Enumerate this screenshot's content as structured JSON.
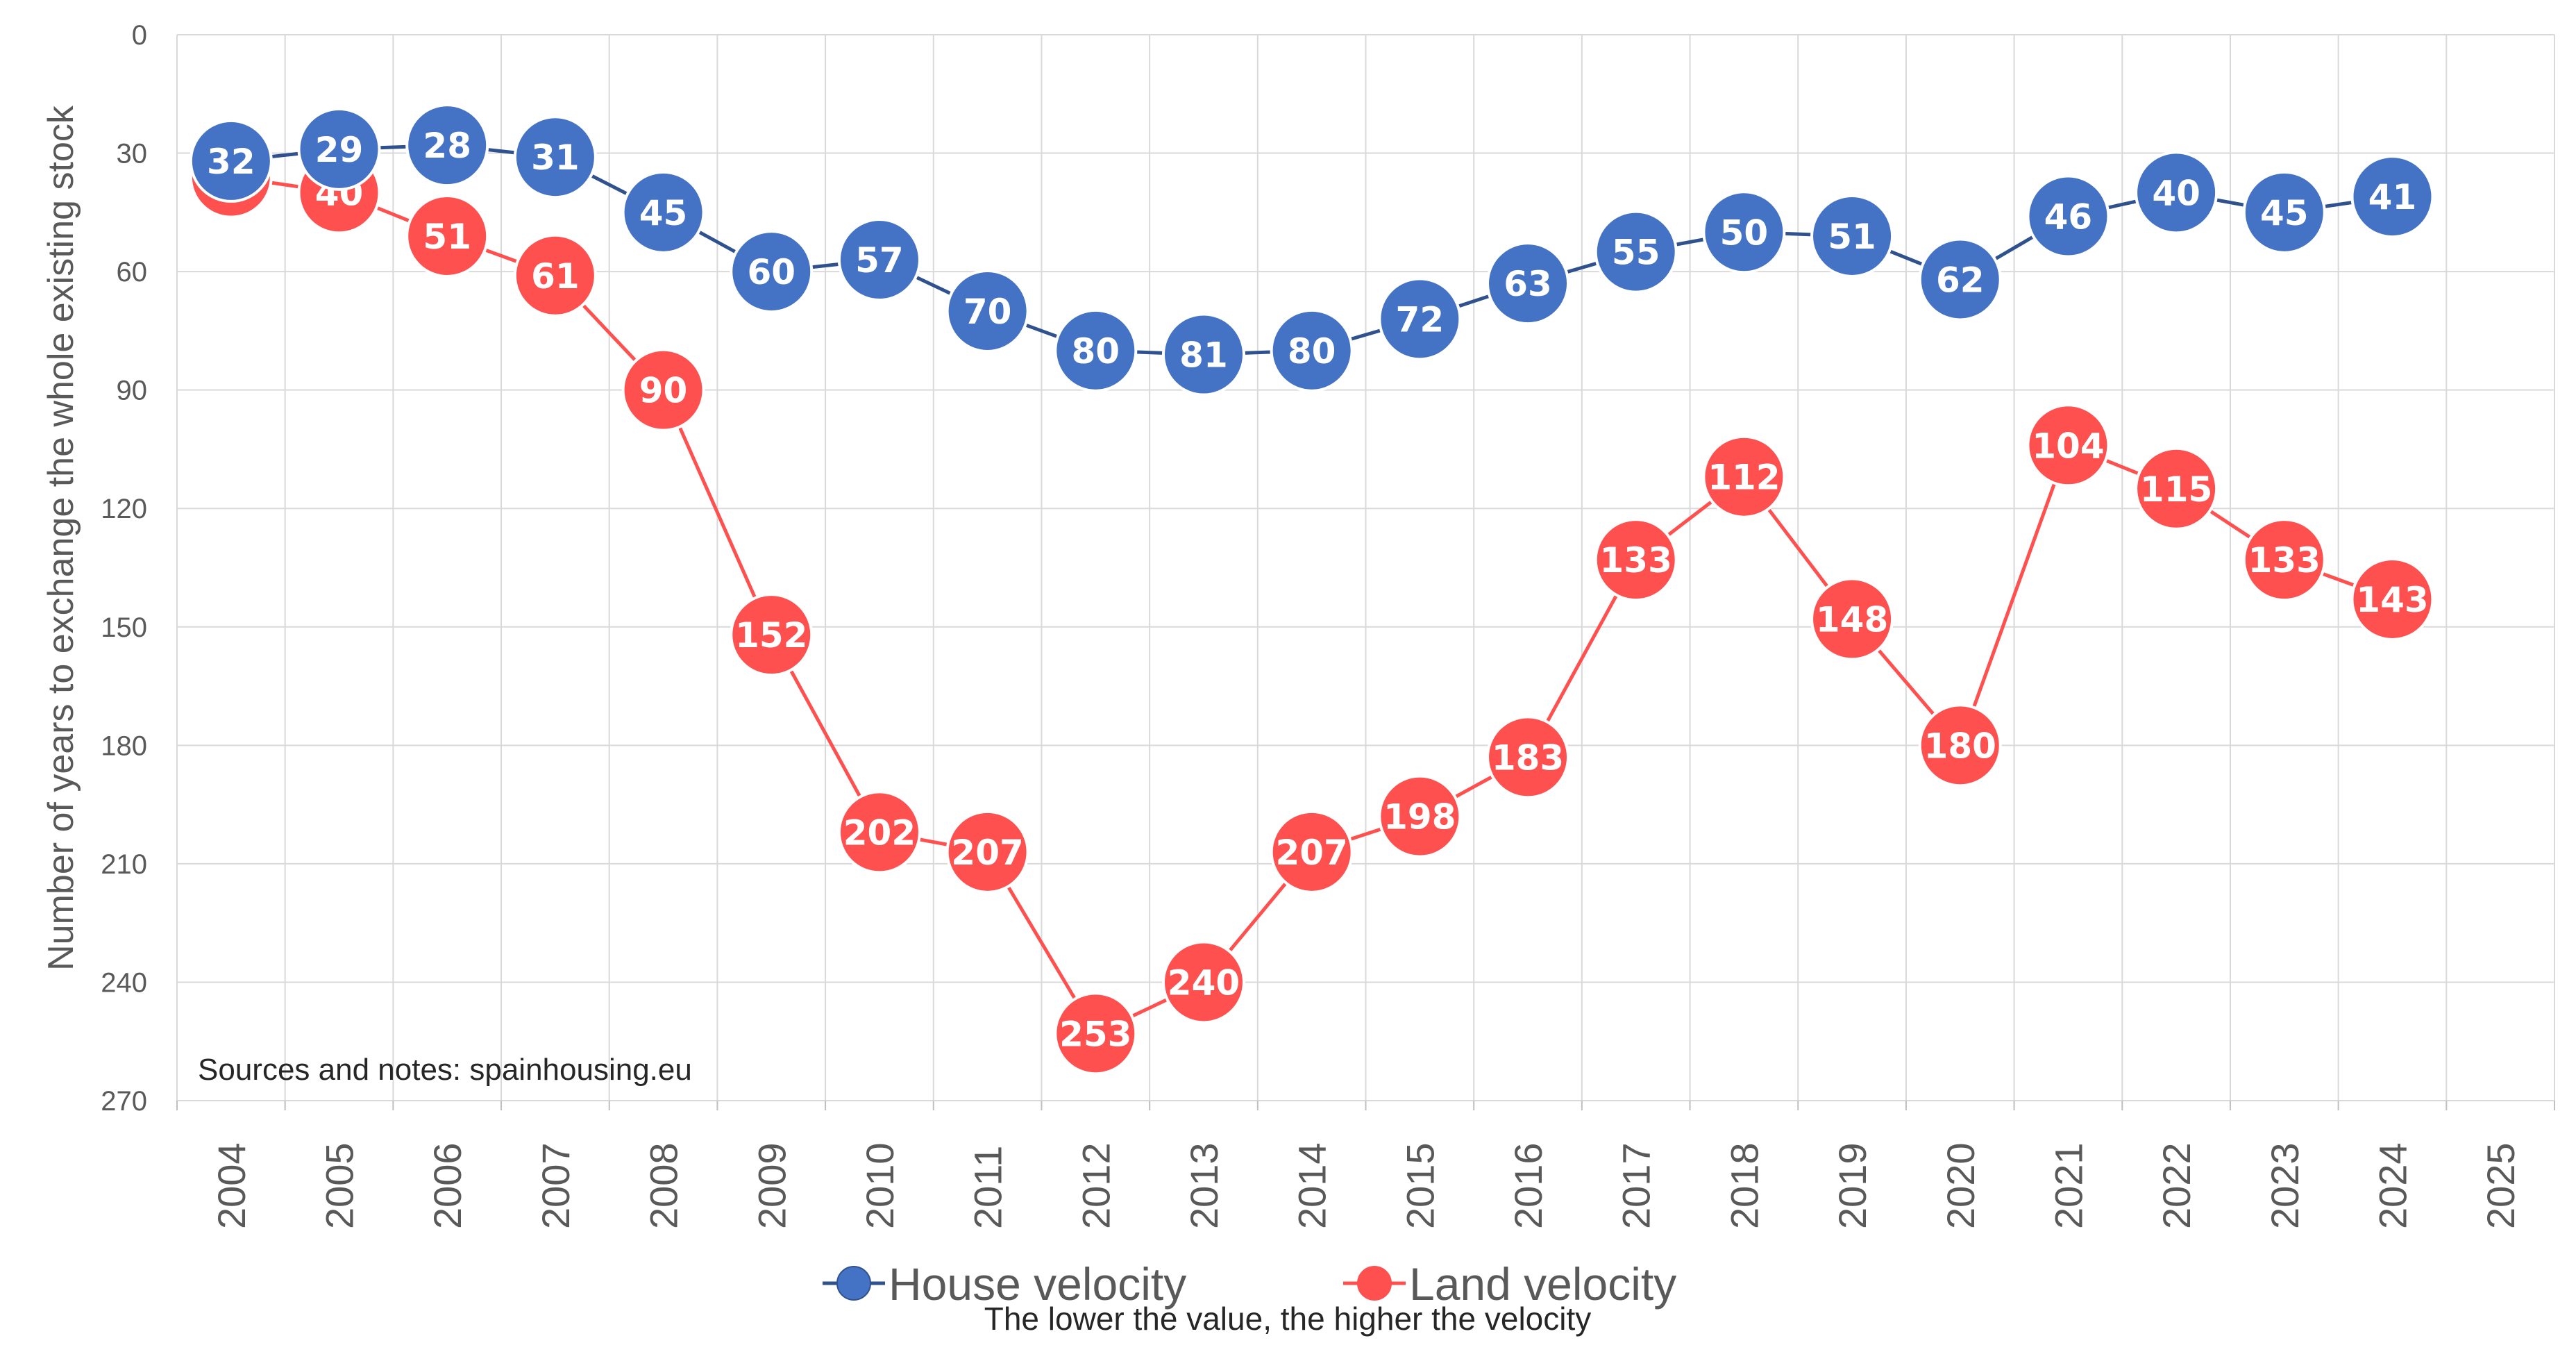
{
  "chart_data": {
    "type": "line",
    "ylabel": "Number of years to exchange the whole existing stock",
    "xlabel": "",
    "y_axis_reversed": true,
    "ylim": [
      0,
      270
    ],
    "yticks": [
      0,
      30,
      60,
      90,
      120,
      150,
      180,
      210,
      240,
      270
    ],
    "categories": [
      "2004",
      "2005",
      "2006",
      "2007",
      "2008",
      "2009",
      "2010",
      "2011",
      "2012",
      "2013",
      "2014",
      "2015",
      "2016",
      "2017",
      "2018",
      "2019",
      "2020",
      "2021",
      "2022",
      "2023",
      "2024",
      "2025"
    ],
    "series": [
      {
        "name": "House velocity",
        "color": "#4472C4",
        "values": [
          32,
          29,
          28,
          31,
          45,
          60,
          57,
          70,
          80,
          81,
          80,
          72,
          63,
          55,
          50,
          51,
          62,
          46,
          40,
          45,
          41,
          null
        ]
      },
      {
        "name": "Land velocity",
        "color": "#FF5050",
        "values": [
          36,
          40,
          51,
          61,
          90,
          152,
          202,
          207,
          253,
          240,
          207,
          198,
          183,
          133,
          112,
          148,
          180,
          104,
          115,
          133,
          143,
          null
        ]
      }
    ],
    "annotation": "Sources and notes: spainhousing.eu",
    "subtitle": "The lower the value, the higher the velocity",
    "legend_position": "bottom",
    "grid": true
  }
}
